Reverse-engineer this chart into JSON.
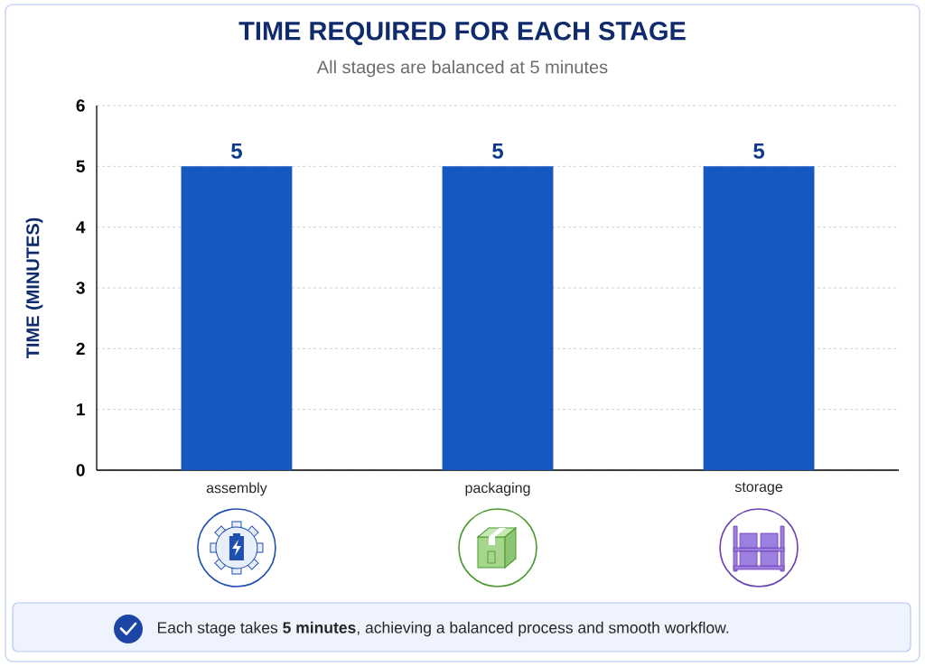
{
  "chart_data": {
    "type": "bar",
    "title": "TIME REQUIRED FOR EACH STAGE",
    "subtitle": "All stages are balanced at 5 minutes",
    "ylabel": "TIME (MINUTES)",
    "categories": [
      "assembly",
      "packaging",
      "storage"
    ],
    "values": [
      5,
      5,
      5
    ],
    "color": "#1558c0",
    "ylim": [
      0,
      6
    ],
    "yticks": [
      0,
      1,
      2,
      3,
      4,
      5,
      6
    ],
    "grid": "y",
    "data_labels": true,
    "annotations": [
      "Each stage takes **5 minutes**, achieving a balanced process and smooth workflow."
    ]
  }
}
